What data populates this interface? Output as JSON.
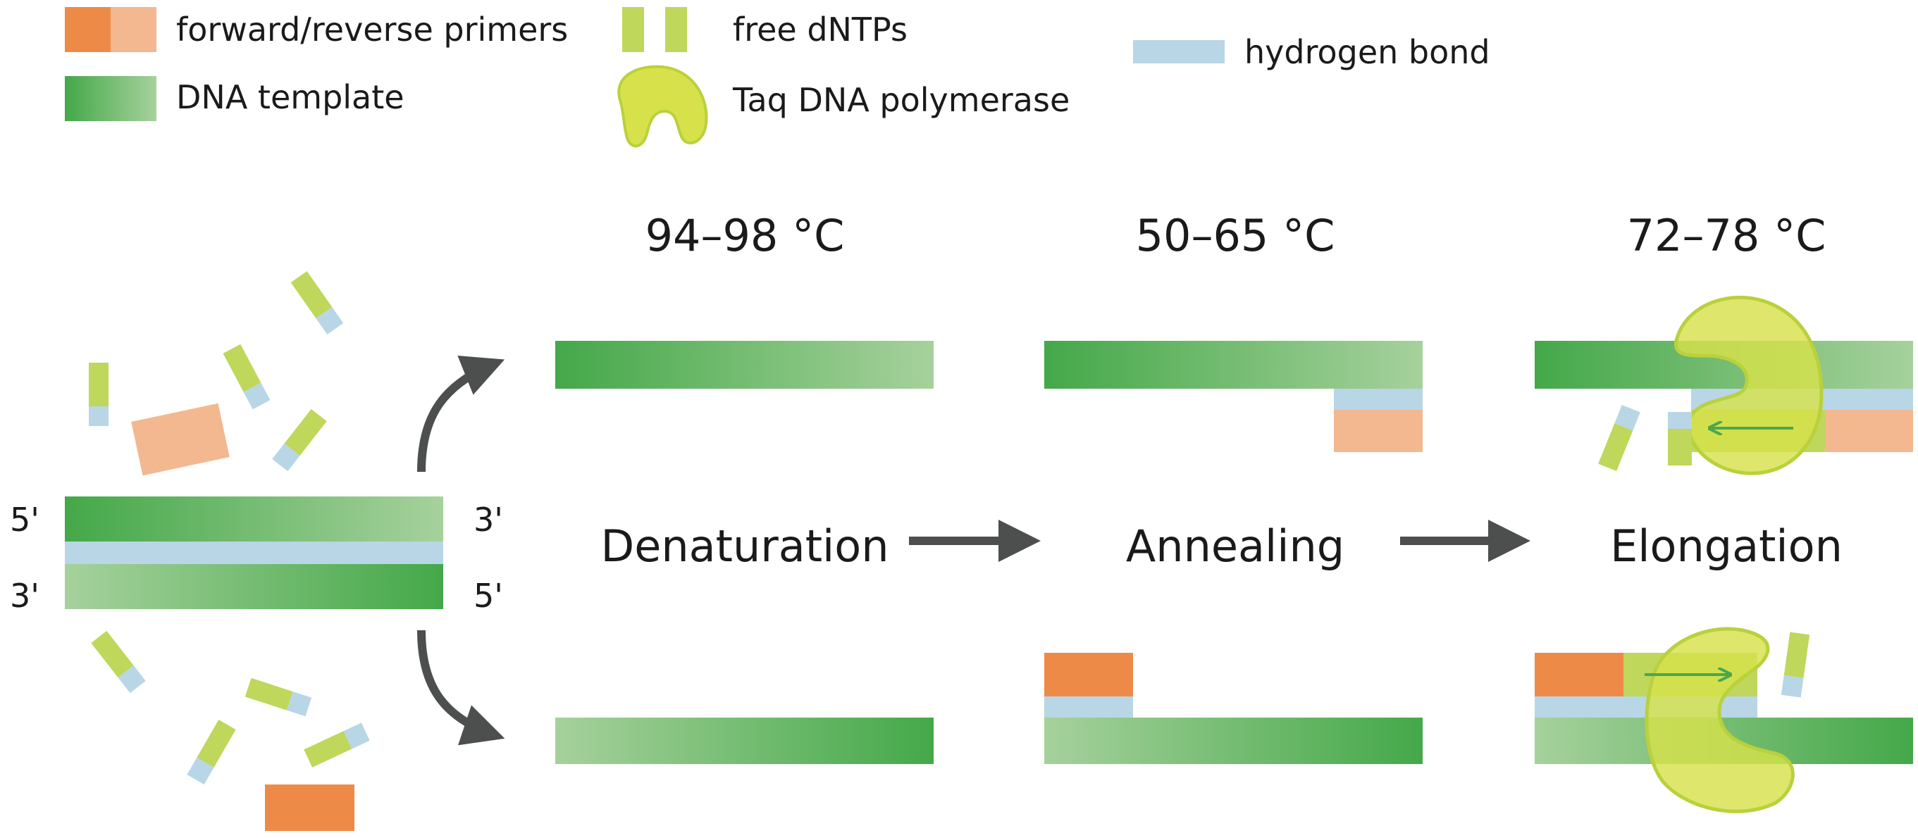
{
  "legend": {
    "primers": "forward/reverse primers",
    "template": "DNA template",
    "dntps": "free dNTPs",
    "polymerase": "Taq DNA polymerase",
    "hbond": "hydrogen bond"
  },
  "temperatures": {
    "denaturation": "94–98 °C",
    "annealing": "50–65 °C",
    "elongation": "72–78 °C"
  },
  "steps": {
    "denaturation": "Denaturation",
    "annealing": "Annealing",
    "elongation": "Elongation"
  },
  "ends": {
    "top_left": "5'",
    "top_right": "3'",
    "bottom_left": "3'",
    "bottom_right": "5'"
  },
  "colors": {
    "dna_green": "#44a849",
    "dna_green_light": "#a4d09a",
    "primer_dark": "#ee8a48",
    "primer_light": "#f3b88f",
    "dntp": "#bfd75a",
    "hbond": "#b8d6e6",
    "polymerase": "#d7e24a",
    "polymerase_stroke": "#b9d13c",
    "arrow": "#4c4f4d"
  }
}
